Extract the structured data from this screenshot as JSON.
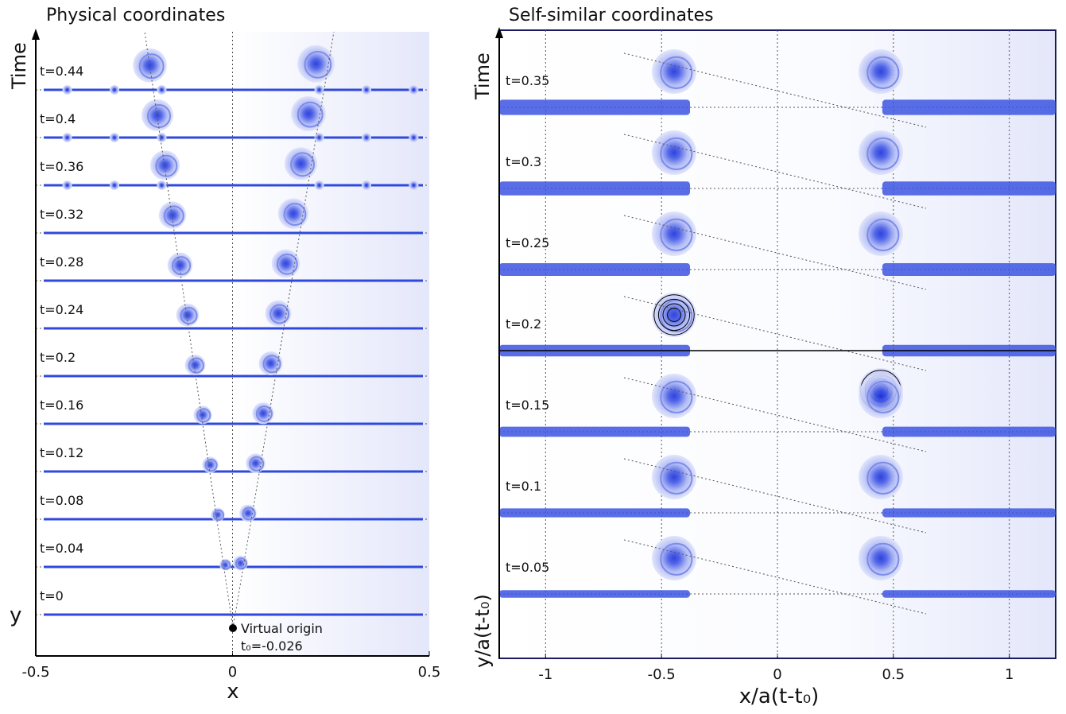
{
  "panels": [
    {
      "title": "Physical coordinates",
      "y_label": "Time",
      "y_axis_label": "y",
      "x_label": "x",
      "xlim": [
        -0.5,
        0.5
      ],
      "xticks": [
        -0.5,
        0,
        0.5
      ],
      "times": [
        "t=0.44",
        "t=0.4",
        "t=0.36",
        "t=0.32",
        "t=0.28",
        "t=0.24",
        "t=0.2",
        "t=0.16",
        "t=0.12",
        "t=0.08",
        "t=0.04",
        "t=0"
      ],
      "annotation": [
        "Virtual origin",
        "t₀=-0.026"
      ]
    },
    {
      "title": "Self-similar coordinates",
      "y_label": "Time",
      "y_axis_label": "y/a(t-t₀)",
      "x_label": "x/a(t-t₀)",
      "xlim": [
        -1.2,
        1.2
      ],
      "xticks": [
        -1,
        -0.5,
        0,
        0.5,
        1
      ],
      "times": [
        "t=0.35",
        "t=0.3",
        "t=0.25",
        "t=0.2",
        "t=0.15",
        "t=0.1",
        "t=0.05"
      ]
    }
  ]
}
